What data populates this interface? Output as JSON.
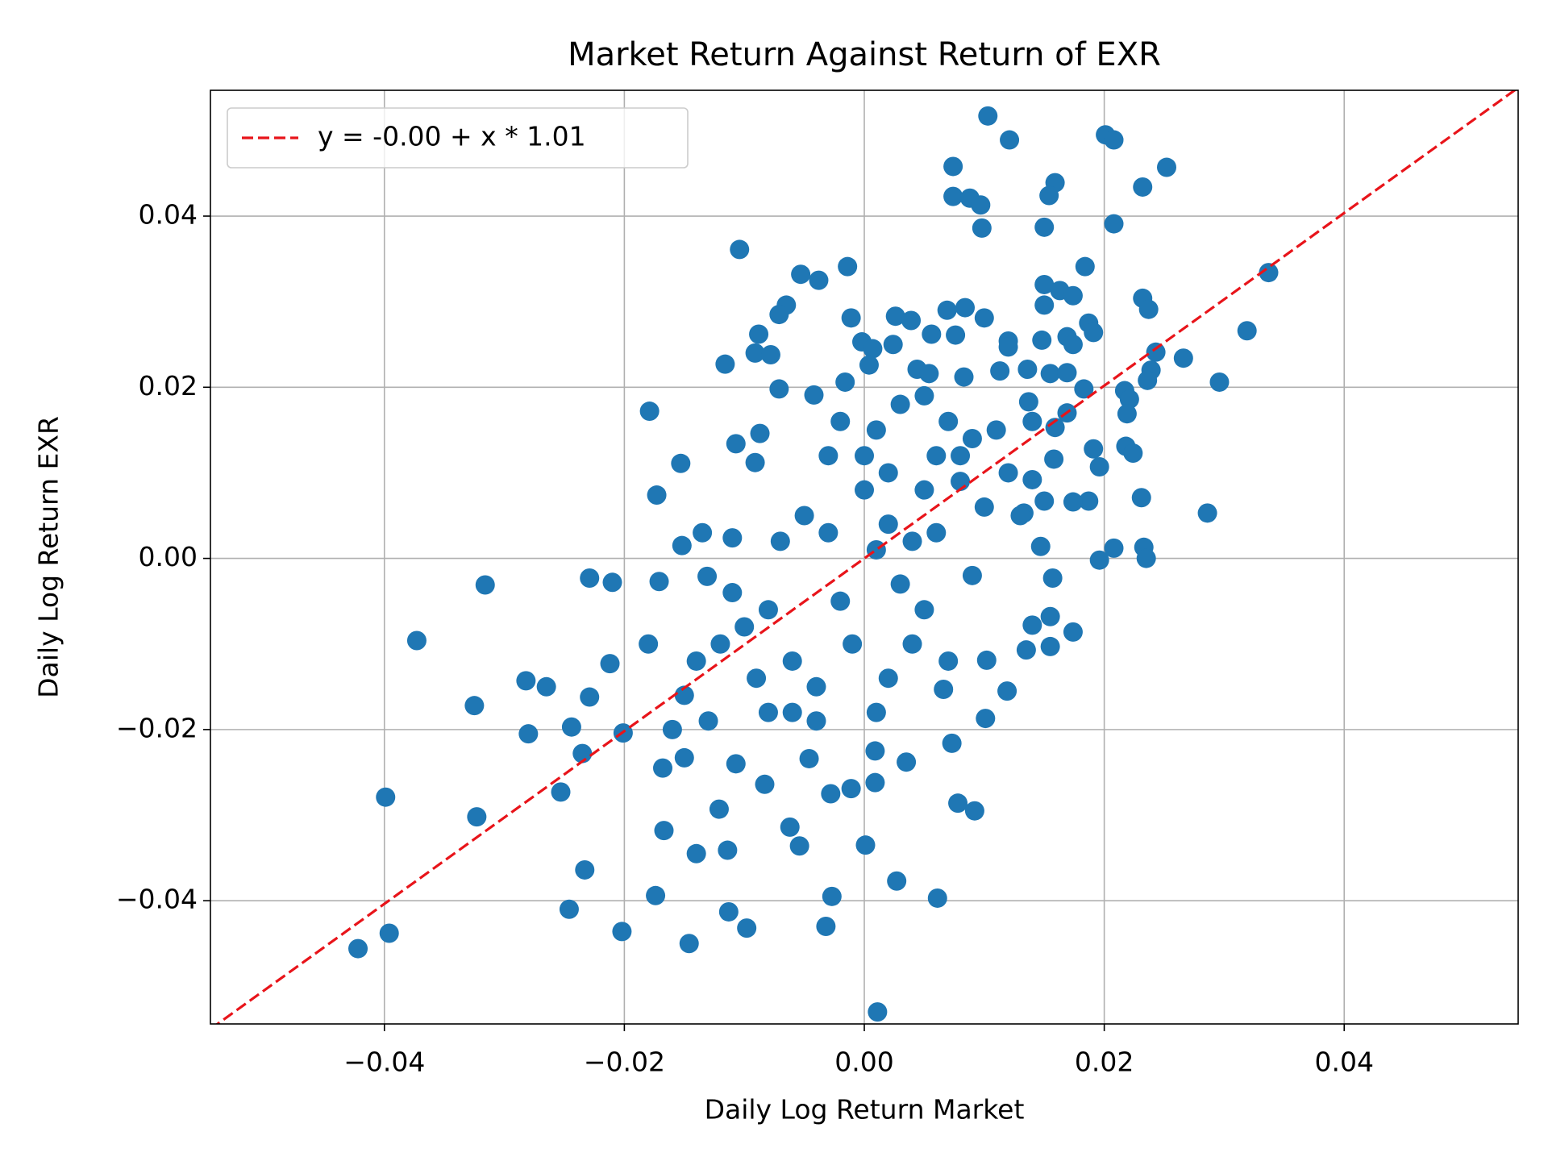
{
  "chart_data": {
    "type": "scatter",
    "title": "Market Return Against Return of EXR",
    "xlabel": "Daily Log Return Market",
    "ylabel": "Daily Log Return EXR",
    "xlim": [
      -0.0545,
      0.0545
    ],
    "ylim": [
      -0.0544,
      0.0547
    ],
    "xticks": [
      {
        "value": -0.04,
        "label": "−0.04"
      },
      {
        "value": -0.02,
        "label": "−0.02"
      },
      {
        "value": 0,
        "label": "0.00"
      },
      0.02,
      0.04
    ],
    "yticks": [
      {
        "value": -0.04,
        "label": "−0.04"
      },
      {
        "value": -0.02,
        "label": "−0.02"
      },
      {
        "value": 0,
        "label": "0.00"
      },
      0.02,
      0.04
    ],
    "grid": true,
    "legend": "upper left",
    "points": {
      "color": "#1f77b4",
      "x": [
        0.0103,
        0.0121,
        0.0201,
        0.0208,
        0.0252,
        0.0232,
        0.0074,
        0.0159,
        0.0154,
        0.0074,
        0.0088,
        0.0097,
        0.0098,
        0.015,
        0.0208,
        -0.0104,
        -0.0014,
        -0.0053,
        -0.0038,
        0.0184,
        0.0337,
        0.015,
        0.0163,
        0.0174,
        0.0232,
        0.0237,
        0.015,
        -0.0065,
        -0.0071,
        0.0084,
        0.0069,
        0.0026,
        0.0039,
        -0.0011,
        0.01,
        0.0187,
        0.0191,
        0.0319,
        0.0056,
        0.0076,
        -0.0088,
        0.0169,
        0.0148,
        0.012,
        0.0174,
        -0.0002,
        0.0024,
        0.012,
        -0.0091,
        -0.0078,
        0.0007,
        0.0243,
        0.0266,
        -0.0116,
        0.0004,
        0.0239,
        0.0044,
        0.0054,
        0.0113,
        0.0136,
        0.0155,
        0.0169,
        0.0296,
        0.0236,
        -0.0016,
        0.0083,
        -0.0071,
        0.0217,
        0.0183,
        -0.0042,
        0.0221,
        -0.0179,
        0.0219,
        0.0169,
        0.0137,
        0.0159,
        -0.0107,
        -0.0087,
        0.0218,
        0.0191,
        0.0224,
        -0.0091,
        -0.0153,
        0.0158,
        0.0196,
        0.014,
        -0.0173,
        0.0231,
        0.0187,
        0.015,
        0.0174,
        0.0286,
        0.0133,
        -0.0135,
        -0.011,
        -0.0152,
        0.0147,
        0.0208,
        0.0233,
        0.0196,
        0.0235,
        -0.0229,
        -0.021,
        -0.0316,
        -0.0171,
        0.0157,
        -0.0131,
        -0.0373,
        0.0174,
        0.014,
        0.0155,
        0.0155,
        0.0135,
        -0.0212,
        -0.0282,
        -0.0265,
        -0.0229,
        -0.0325,
        0.0119,
        0.0066,
        0.0102,
        -0.0244,
        -0.028,
        -0.0201,
        0.0101,
        0.0073,
        0.0009,
        0.0035,
        -0.0235,
        -0.0253,
        -0.0399,
        0.0078,
        0.0092,
        0.0009,
        -0.0011,
        -0.0028,
        -0.0323,
        -0.0167,
        -0.0054,
        0.0001,
        -0.014,
        -0.0233,
        0.0027,
        -0.0174,
        -0.0027,
        0.0061,
        -0.0246,
        -0.0113,
        -0.0032,
        -0.0098,
        -0.0202,
        -0.0396,
        -0.0146,
        -0.0422,
        0.0011,
        -0.0114,
        -0.0121,
        -0.0062,
        -0.0083,
        -0.0107,
        -0.0168,
        -0.015,
        -0.0046,
        -0.005,
        0.002,
        0.005,
        -0.002,
        0.003,
        -0.008,
        0.008,
        0.001,
        -0.003,
        0.006,
        -0.006,
        0.004,
        -0.01,
        0.01,
        -0.004,
        0.002,
        0.007,
        -0.001,
        -0.012,
        0.012,
        -0.014,
        0.009,
        -0.007,
        0.0,
        0.003,
        -0.002,
        0.005,
        -0.009,
        0.011,
        -0.015,
        0.001,
        -0.004,
        0.006,
        0.004,
        -0.011,
        0.008,
        -0.006,
        0.014,
        0.002,
        -0.013,
        0.007,
        0.0,
        -0.003,
        0.009,
        -0.008,
        0.013,
        0.005,
        -0.018,
        -0.016,
        0.001
      ],
      "y": [
        0.0517,
        0.0489,
        0.0495,
        0.0489,
        0.0457,
        0.0434,
        0.0458,
        0.0439,
        0.0424,
        0.0423,
        0.0421,
        0.0413,
        0.0386,
        0.0387,
        0.0391,
        0.0361,
        0.0341,
        0.0332,
        0.0325,
        0.0341,
        0.0334,
        0.032,
        0.0313,
        0.0307,
        0.0304,
        0.0291,
        0.0296,
        0.0296,
        0.0285,
        0.0293,
        0.029,
        0.0283,
        0.0278,
        0.0281,
        0.0281,
        0.0275,
        0.0264,
        0.0266,
        0.0262,
        0.0261,
        0.0262,
        0.0259,
        0.0255,
        0.0254,
        0.025,
        0.0253,
        0.025,
        0.0247,
        0.024,
        0.0238,
        0.0245,
        0.0241,
        0.0234,
        0.0227,
        0.0226,
        0.022,
        0.0221,
        0.0216,
        0.0219,
        0.0221,
        0.0216,
        0.0217,
        0.0206,
        0.0208,
        0.0206,
        0.0212,
        0.0198,
        0.0196,
        0.0198,
        0.0191,
        0.0186,
        0.0172,
        0.0169,
        0.017,
        0.0183,
        0.0153,
        0.0134,
        0.0146,
        0.0131,
        0.0128,
        0.0123,
        0.0112,
        0.0111,
        0.0116,
        0.0107,
        0.0092,
        0.0074,
        0.0071,
        0.0067,
        0.0067,
        0.0066,
        0.0053,
        0.0053,
        0.003,
        0.0024,
        0.0015,
        0.0014,
        0.0012,
        0.0013,
        -0.0002,
        0.0,
        -0.0023,
        -0.0028,
        -0.0031,
        -0.0027,
        -0.0023,
        -0.0021,
        -0.0096,
        -0.0086,
        -0.0078,
        -0.0068,
        -0.0103,
        -0.0107,
        -0.0123,
        -0.0143,
        -0.015,
        -0.0162,
        -0.0172,
        -0.0155,
        -0.0153,
        -0.0119,
        -0.0197,
        -0.0205,
        -0.0204,
        -0.0187,
        -0.0216,
        -0.0225,
        -0.0238,
        -0.0228,
        -0.0273,
        -0.0279,
        -0.0286,
        -0.0295,
        -0.0262,
        -0.0269,
        -0.0275,
        -0.0302,
        -0.0318,
        -0.0336,
        -0.0335,
        -0.0345,
        -0.0364,
        -0.0377,
        -0.0394,
        -0.0395,
        -0.0397,
        -0.041,
        -0.0413,
        -0.043,
        -0.0432,
        -0.0436,
        -0.0438,
        -0.045,
        -0.0456,
        -0.053,
        -0.0341,
        -0.0293,
        -0.0314,
        -0.0264,
        -0.024,
        -0.0245,
        -0.0233,
        -0.0234,
        0.005,
        0.01,
        0.008,
        -0.005,
        -0.003,
        -0.006,
        0.012,
        0.015,
        0.012,
        0.003,
        -0.012,
        -0.01,
        -0.008,
        0.006,
        -0.015,
        0.004,
        0.016,
        -0.01,
        -0.01,
        0.01,
        -0.012,
        -0.002,
        0.002,
        0.008,
        0.018,
        0.016,
        -0.006,
        -0.014,
        0.015,
        -0.016,
        -0.018,
        -0.019,
        0.012,
        0.002,
        -0.004,
        0.009,
        -0.018,
        0.016,
        -0.014,
        -0.019,
        -0.012,
        0.012,
        0.003,
        0.014,
        -0.018,
        0.005,
        0.019,
        -0.01,
        -0.02,
        0.001
      ]
    },
    "fit": {
      "name": "y = -0.00 + x * 1.01",
      "color": "#e8141a",
      "style": "dashed",
      "x": [
        -0.0545,
        0.0545
      ],
      "y": [
        -0.055,
        0.055
      ]
    }
  }
}
